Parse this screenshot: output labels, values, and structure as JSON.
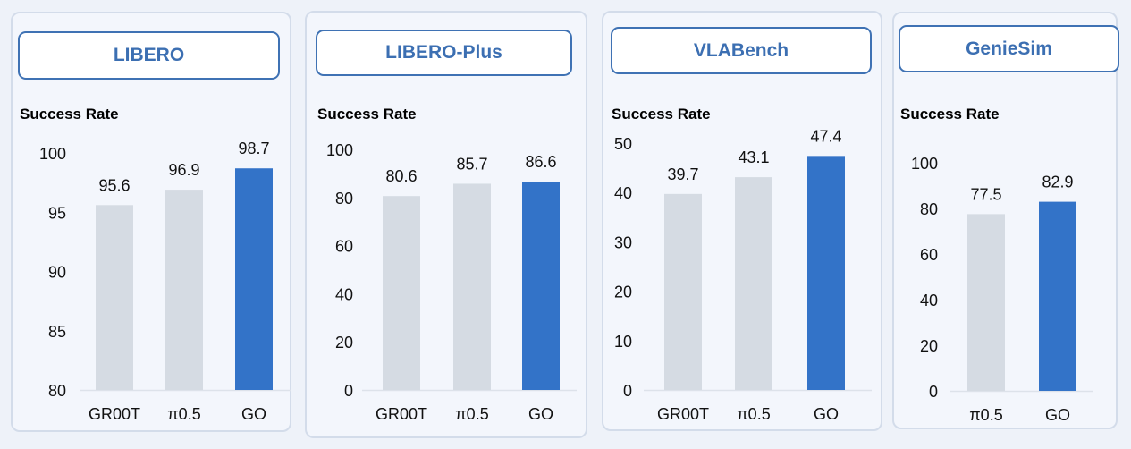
{
  "colors": {
    "baseline_bar": "#d5dbe3",
    "highlight_bar": "#3373c8",
    "title_text": "#3c6fb2"
  },
  "chart_data": [
    {
      "type": "bar",
      "title": "LIBERO",
      "ylabel": "Success Rate",
      "categories": [
        "GR00T",
        "π0.5",
        "GO"
      ],
      "values": [
        95.6,
        96.9,
        98.7
      ],
      "value_labels": [
        "95.6",
        "96.9",
        "98.7"
      ],
      "ylim": [
        80,
        100
      ],
      "yticks": [
        "80",
        "85",
        "90",
        "95",
        "100"
      ],
      "highlight": "GO",
      "grid": false
    },
    {
      "type": "bar",
      "title": "LIBERO-Plus",
      "ylabel": "Success Rate",
      "categories": [
        "GR00T",
        "π0.5",
        "GO"
      ],
      "values": [
        80.6,
        85.7,
        86.6
      ],
      "value_labels": [
        "80.6",
        "85.7",
        "86.6"
      ],
      "ylim": [
        0,
        100
      ],
      "yticks": [
        "0",
        "20",
        "40",
        "60",
        "80",
        "100"
      ],
      "highlight": "GO",
      "grid": false
    },
    {
      "type": "bar",
      "title": "VLABench",
      "ylabel": "Success Rate",
      "categories": [
        "GR00T",
        "π0.5",
        "GO"
      ],
      "values": [
        39.7,
        43.1,
        47.4
      ],
      "value_labels": [
        "39.7",
        "43.1",
        "47.4"
      ],
      "ylim": [
        0,
        50
      ],
      "yticks": [
        "0",
        "10",
        "20",
        "30",
        "40",
        "50"
      ],
      "highlight": "GO",
      "grid": false
    },
    {
      "type": "bar",
      "title": "GenieSim",
      "ylabel": "Success Rate",
      "categories": [
        "π0.5",
        "GO"
      ],
      "values": [
        77.5,
        82.9
      ],
      "value_labels": [
        "77.5",
        "82.9"
      ],
      "ylim": [
        0,
        100
      ],
      "yticks": [
        "0",
        "20",
        "40",
        "60",
        "80",
        "100"
      ],
      "highlight": "GO",
      "grid": false
    }
  ]
}
